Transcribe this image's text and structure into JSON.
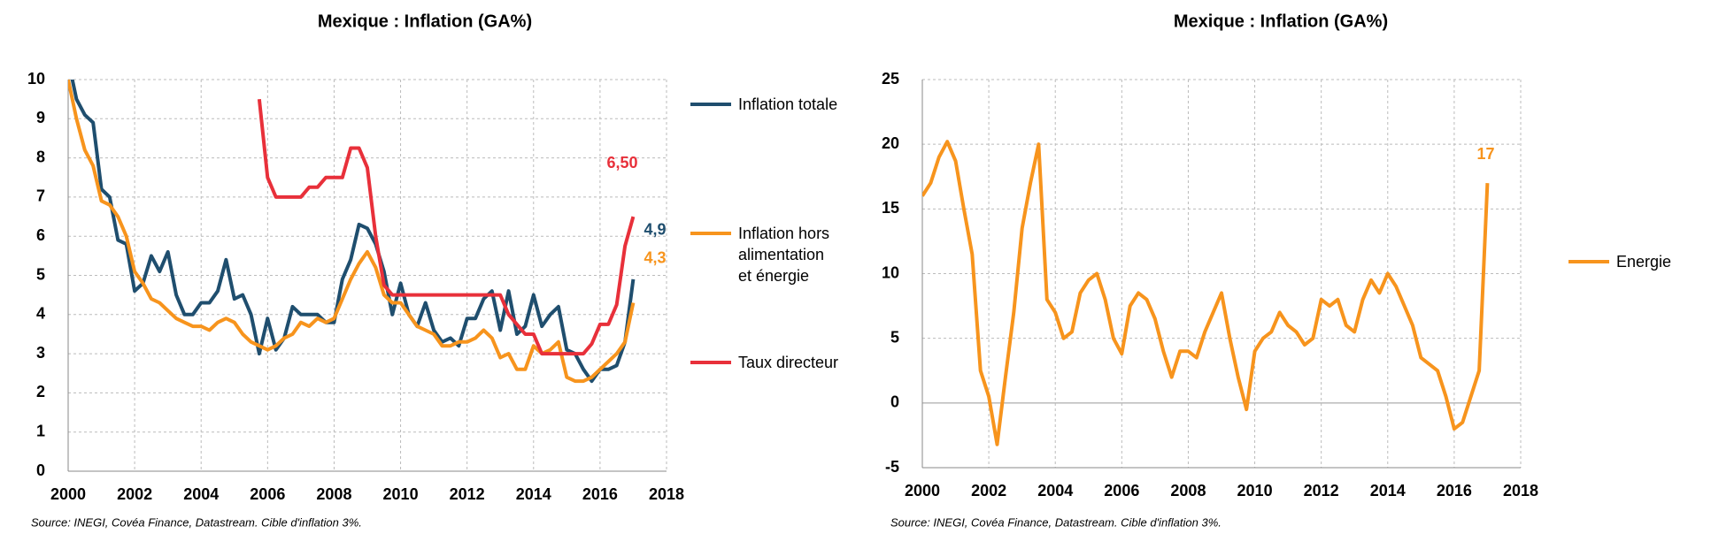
{
  "chart_data": [
    {
      "type": "line",
      "title": "Mexique : Inflation (GA%)",
      "source": "Source: INEGI, Covéa Finance, Datastream. Cible d'inflation 3%.",
      "x": [
        2000,
        2000.25,
        2000.5,
        2000.75,
        2001,
        2001.25,
        2001.5,
        2001.75,
        2002,
        2002.25,
        2002.5,
        2002.75,
        2003,
        2003.25,
        2003.5,
        2003.75,
        2004,
        2004.25,
        2004.5,
        2004.75,
        2005,
        2005.25,
        2005.5,
        2005.75,
        2006,
        2006.25,
        2006.5,
        2006.75,
        2007,
        2007.25,
        2007.5,
        2007.75,
        2008,
        2008.25,
        2008.5,
        2008.75,
        2009,
        2009.25,
        2009.5,
        2009.75,
        2010,
        2010.25,
        2010.5,
        2010.75,
        2011,
        2011.25,
        2011.5,
        2011.75,
        2012,
        2012.25,
        2012.5,
        2012.75,
        2013,
        2013.25,
        2013.5,
        2013.75,
        2014,
        2014.25,
        2014.5,
        2014.75,
        2015,
        2015.25,
        2015.5,
        2015.75,
        2016,
        2016.25,
        2016.5,
        2016.75,
        2017
      ],
      "series": [
        {
          "name": "Inflation totale",
          "color": "#1f4e6e",
          "end_label": "4,9",
          "values": [
            10.5,
            9.5,
            9.1,
            8.9,
            7.2,
            7.0,
            5.9,
            5.8,
            4.6,
            4.8,
            5.5,
            5.1,
            5.6,
            4.5,
            4.0,
            4.0,
            4.3,
            4.3,
            4.6,
            5.4,
            4.4,
            4.5,
            4.0,
            3.0,
            3.9,
            3.1,
            3.4,
            4.2,
            4.0,
            4.0,
            4.0,
            3.8,
            3.8,
            4.9,
            5.4,
            6.3,
            6.2,
            5.8,
            5.1,
            4.0,
            4.8,
            4.0,
            3.7,
            4.3,
            3.6,
            3.3,
            3.4,
            3.2,
            3.9,
            3.9,
            4.4,
            4.6,
            3.6,
            4.6,
            3.5,
            3.7,
            4.5,
            3.7,
            4.0,
            4.2,
            3.1,
            3.0,
            2.6,
            2.3,
            2.6,
            2.6,
            2.7,
            3.3,
            4.9
          ]
        },
        {
          "name": "Inflation hors alimentation et énergie",
          "color": "#f7941d",
          "end_label": "4,3",
          "values": [
            10,
            9.0,
            8.2,
            7.8,
            6.9,
            6.8,
            6.5,
            6.0,
            5.1,
            4.8,
            4.4,
            4.3,
            4.1,
            3.9,
            3.8,
            3.7,
            3.7,
            3.6,
            3.8,
            3.9,
            3.8,
            3.5,
            3.3,
            3.2,
            3.1,
            3.2,
            3.4,
            3.5,
            3.8,
            3.7,
            3.9,
            3.8,
            3.9,
            4.4,
            4.9,
            5.3,
            5.6,
            5.2,
            4.5,
            4.3,
            4.3,
            4.0,
            3.7,
            3.6,
            3.5,
            3.2,
            3.2,
            3.3,
            3.3,
            3.4,
            3.6,
            3.4,
            2.9,
            3.0,
            2.6,
            2.6,
            3.2,
            3.0,
            3.1,
            3.3,
            2.4,
            2.3,
            2.3,
            2.4,
            2.6,
            2.8,
            3.0,
            3.3,
            4.3
          ]
        },
        {
          "name": "Taux directeur",
          "color": "#e8303a",
          "end_label": "6,50",
          "values": [
            null,
            null,
            null,
            null,
            null,
            null,
            null,
            null,
            null,
            null,
            null,
            null,
            null,
            null,
            null,
            null,
            null,
            null,
            null,
            null,
            null,
            null,
            null,
            9.5,
            7.5,
            7.0,
            7.0,
            7.0,
            7.0,
            7.25,
            7.25,
            7.5,
            7.5,
            7.5,
            8.25,
            8.25,
            7.75,
            6.0,
            4.75,
            4.5,
            4.5,
            4.5,
            4.5,
            4.5,
            4.5,
            4.5,
            4.5,
            4.5,
            4.5,
            4.5,
            4.5,
            4.5,
            4.5,
            4.0,
            3.75,
            3.5,
            3.5,
            3.0,
            3.0,
            3.0,
            3.0,
            3.0,
            3.0,
            3.25,
            3.75,
            3.75,
            4.25,
            5.75,
            6.5
          ]
        }
      ],
      "xlim": [
        2000,
        2018
      ],
      "xticks": [
        2000,
        2002,
        2004,
        2006,
        2008,
        2010,
        2012,
        2014,
        2016,
        2018
      ],
      "ylim": [
        0,
        10
      ],
      "yticks": [
        0,
        1,
        2,
        3,
        4,
        5,
        6,
        7,
        8,
        9,
        10
      ],
      "grid": true
    },
    {
      "type": "line",
      "title": "Mexique : Inflation (GA%)",
      "source": "Source: INEGI, Covéa Finance, Datastream. Cible d'inflation 3%.",
      "x": [
        2000,
        2000.25,
        2000.5,
        2000.75,
        2001,
        2001.25,
        2001.5,
        2001.75,
        2002,
        2002.25,
        2002.5,
        2002.75,
        2003,
        2003.25,
        2003.5,
        2003.75,
        2004,
        2004.25,
        2004.5,
        2004.75,
        2005,
        2005.25,
        2005.5,
        2005.75,
        2006,
        2006.25,
        2006.5,
        2006.75,
        2007,
        2007.25,
        2007.5,
        2007.75,
        2008,
        2008.25,
        2008.5,
        2008.75,
        2009,
        2009.25,
        2009.5,
        2009.75,
        2010,
        2010.25,
        2010.5,
        2010.75,
        2011,
        2011.25,
        2011.5,
        2011.75,
        2012,
        2012.25,
        2012.5,
        2012.75,
        2013,
        2013.25,
        2013.5,
        2013.75,
        2014,
        2014.25,
        2014.5,
        2014.75,
        2015,
        2015.25,
        2015.5,
        2015.75,
        2016,
        2016.25,
        2016.5,
        2016.75,
        2017
      ],
      "series": [
        {
          "name": "Energie",
          "color": "#f7941d",
          "end_label": "17",
          "values": [
            16,
            17,
            19,
            20.2,
            18.7,
            15,
            11.5,
            2.5,
            0.5,
            -3.2,
            2,
            7,
            13.5,
            17,
            20,
            8,
            7,
            5,
            5.5,
            8.5,
            9.5,
            10,
            8,
            5,
            3.8,
            7.5,
            8.5,
            8,
            6.5,
            4,
            2,
            4,
            4,
            3.5,
            5.5,
            7,
            8.5,
            5,
            2,
            -0.5,
            4,
            5,
            5.5,
            7,
            6,
            5.5,
            4.5,
            5,
            8,
            7.5,
            8,
            6,
            5.5,
            8,
            9.5,
            8.5,
            10,
            9,
            7.5,
            6,
            3.5,
            3,
            2.5,
            0.5,
            -2,
            -1.5,
            0.5,
            2.5,
            17
          ]
        }
      ],
      "xlim": [
        2000,
        2018
      ],
      "xticks": [
        2000,
        2002,
        2004,
        2006,
        2008,
        2010,
        2012,
        2014,
        2016,
        2018
      ],
      "ylim": [
        -5,
        25
      ],
      "yticks": [
        -5,
        0,
        5,
        10,
        15,
        20,
        25
      ],
      "grid": true
    }
  ]
}
